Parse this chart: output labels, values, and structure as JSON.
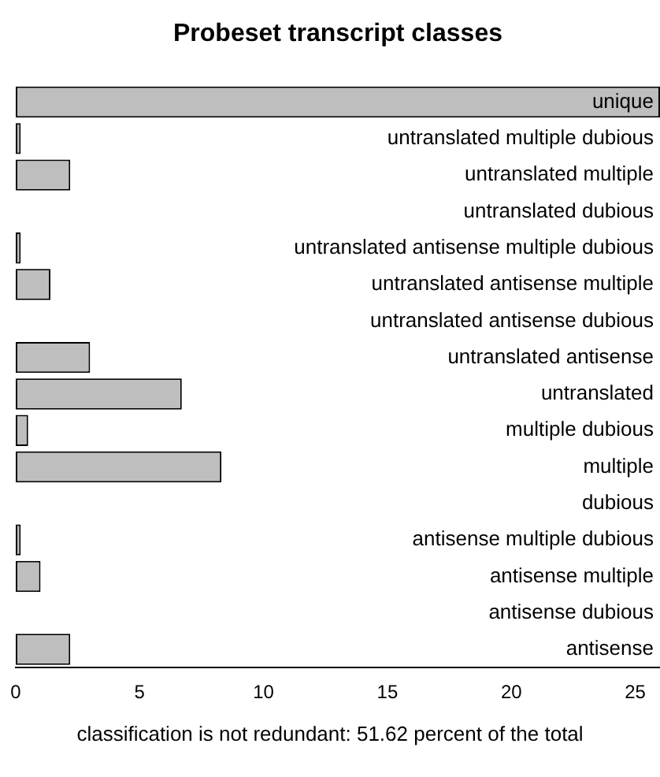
{
  "chart_data": {
    "type": "bar",
    "orientation": "horizontal",
    "title": "Probeset transcript classes",
    "categories": [
      "unique",
      "untranslated multiple dubious",
      "untranslated multiple",
      "untranslated dubious",
      "untranslated antisense multiple dubious",
      "untranslated antisense multiple",
      "untranslated antisense dubious",
      "untranslated antisense",
      "untranslated",
      "multiple dubious",
      "multiple",
      "dubious",
      "antisense multiple dubious",
      "antisense multiple",
      "antisense dubious",
      "antisense"
    ],
    "values": [
      26,
      0.2,
      2.2,
      0,
      0.2,
      1.4,
      0,
      3.0,
      6.7,
      0.5,
      8.3,
      0,
      0.2,
      1.0,
      0,
      2.2
    ],
    "color": "#bebebe",
    "xlim": [
      0,
      26
    ],
    "xticks": [
      0,
      5,
      10,
      15,
      20,
      25
    ],
    "grid": false,
    "tick_labels": "x",
    "annotations": [
      "classification is not redundant: 51.62 percent of the total"
    ]
  }
}
